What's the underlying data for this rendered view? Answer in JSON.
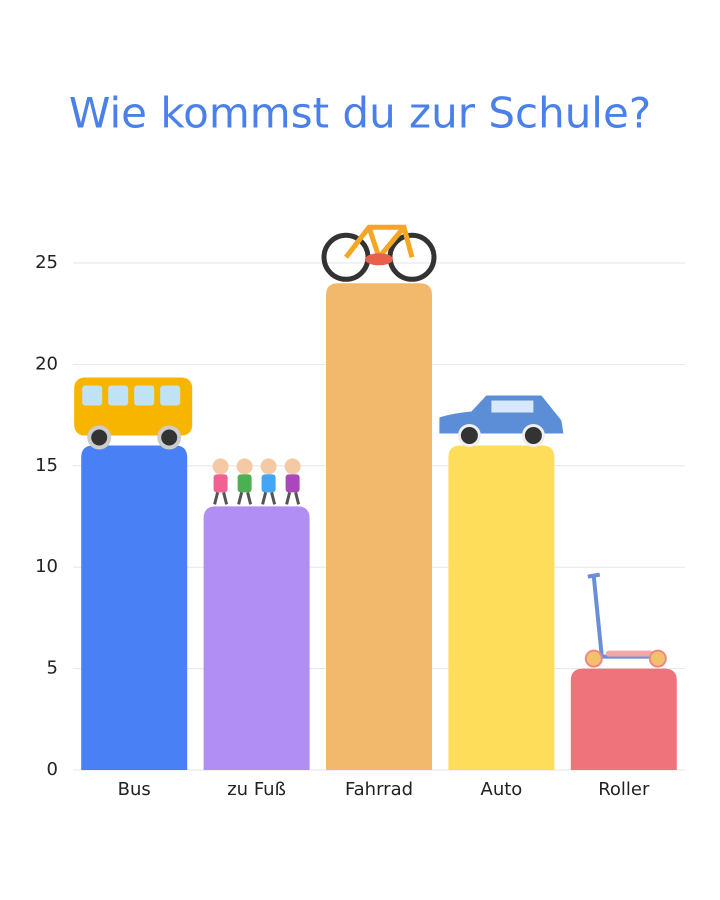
{
  "chart_data": {
    "type": "bar",
    "title": "Wie kommst du zur Schule?",
    "categories": [
      "Bus",
      "zu Fuß",
      "Fahrrad",
      "Auto",
      "Roller"
    ],
    "values": [
      16,
      13,
      24,
      16,
      5
    ],
    "colors": [
      "#4a80f5",
      "#b08ef3",
      "#f2b96c",
      "#fedd5a",
      "#ef737b"
    ],
    "ylim": [
      0,
      25
    ],
    "yticks": [
      0,
      5,
      10,
      15,
      20,
      25
    ],
    "grid": true
  }
}
